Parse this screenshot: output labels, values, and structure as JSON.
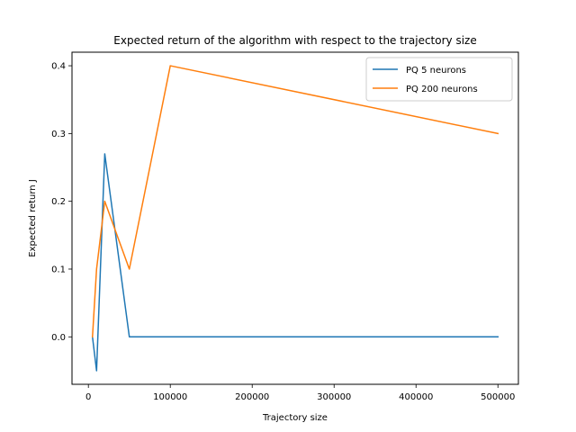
{
  "chart_data": {
    "type": "line",
    "title": "Expected return of the algorithm with respect to the trajectory size",
    "xlabel": "Trajectory size",
    "ylabel": "Expected return J",
    "xlim": [
      -20000,
      525000
    ],
    "ylim": [
      -0.07,
      0.42
    ],
    "x_ticks": [
      0,
      100000,
      200000,
      300000,
      400000,
      500000
    ],
    "x_tick_labels": [
      "0",
      "100000",
      "200000",
      "300000",
      "400000",
      "500000"
    ],
    "y_ticks": [
      0.0,
      0.1,
      0.2,
      0.3,
      0.4
    ],
    "y_tick_labels": [
      "0.0",
      "0.1",
      "0.2",
      "0.3",
      "0.4"
    ],
    "grid": false,
    "legend_position": "top-right",
    "series": [
      {
        "name": "PQ 5 neurons",
        "color": "#1f77b4",
        "x": [
          5000,
          10000,
          20000,
          50000,
          100000,
          500000
        ],
        "y": [
          0.0,
          -0.05,
          0.27,
          0.0,
          0.0,
          0.0
        ]
      },
      {
        "name": "PQ 200 neurons",
        "color": "#ff7f0e",
        "x": [
          5000,
          10000,
          20000,
          50000,
          100000,
          500000
        ],
        "y": [
          0.0,
          0.1,
          0.2,
          0.1,
          0.4,
          0.3
        ]
      }
    ]
  }
}
